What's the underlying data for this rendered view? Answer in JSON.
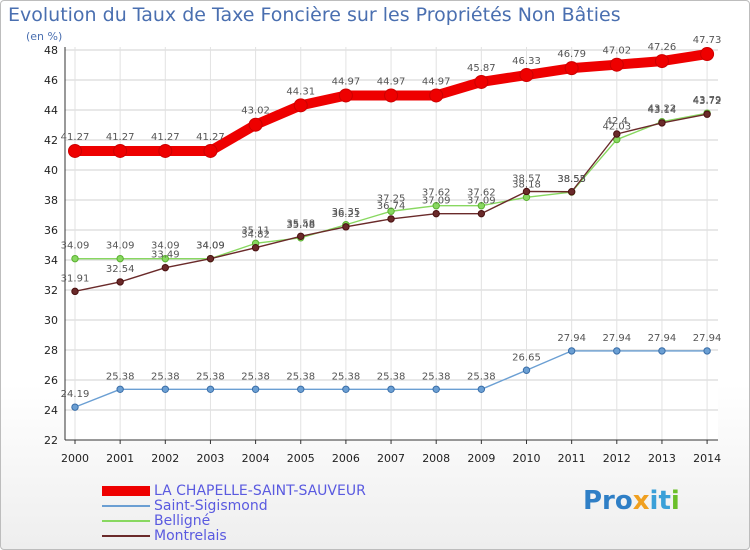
{
  "header": {
    "title": "Evolution du Taux de Taxe Foncière sur les Propriétés Non Bâties",
    "subtitle": "(en %)"
  },
  "brand": {
    "name": "Proxiti",
    "parts": [
      "Pro",
      "x",
      "it",
      "i"
    ]
  },
  "chart_data": {
    "type": "line",
    "title": "Evolution du Taux de Taxe Foncière sur les Propriétés Non Bâties",
    "ylabel": "(en %)",
    "xlabel": "",
    "x": [
      "2000",
      "2001",
      "2002",
      "2003",
      "2004",
      "2005",
      "2006",
      "2007",
      "2008",
      "2009",
      "2010",
      "2011",
      "2012",
      "2013",
      "2014"
    ],
    "ylim": [
      22,
      48
    ],
    "yticks": [
      22,
      24,
      26,
      28,
      30,
      32,
      34,
      36,
      38,
      40,
      42,
      44,
      46,
      48
    ],
    "grid": true,
    "legend": "bottom-left",
    "series": [
      {
        "name": "LA CHAPELLE-SAINT-SAUVEUR",
        "color": "#ee0000",
        "values": [
          41.27,
          41.27,
          41.27,
          41.27,
          43.02,
          44.31,
          44.97,
          44.97,
          44.97,
          45.87,
          46.33,
          46.79,
          47.02,
          47.26,
          47.73
        ],
        "labels": [
          "41.27",
          "41.27",
          "41.27",
          "41.27",
          "43.02",
          "44.31",
          "44.97",
          "44.97",
          "44.97",
          "45.87",
          "46.33",
          "46.79",
          "47.02",
          "47.26",
          "47.73"
        ]
      },
      {
        "name": "Saint-Sigismond",
        "color": "#6b9fd3",
        "values": [
          24.19,
          25.38,
          25.38,
          25.38,
          25.38,
          25.38,
          25.38,
          25.38,
          25.38,
          25.38,
          26.65,
          27.94,
          27.94,
          27.94,
          27.94
        ],
        "labels": [
          "24.19",
          "25.38",
          "25.38",
          "25.38",
          "25.38",
          "25.38",
          "25.38",
          "25.38",
          "25.38",
          "25.38",
          "26.65",
          "27.94",
          "27.94",
          "27.94",
          "27.94"
        ]
      },
      {
        "name": "Belligné",
        "color": "#88d860",
        "values": [
          34.09,
          34.09,
          34.09,
          34.09,
          35.11,
          35.48,
          36.35,
          37.25,
          37.62,
          37.62,
          38.18,
          38.53,
          42.03,
          43.22,
          43.79
        ],
        "labels": [
          "34.09",
          "34.09",
          "34.09",
          "34.09",
          "35.11",
          "35.48",
          "36.35",
          "37.25",
          "37.62",
          "37.62",
          "38.18",
          "38.53",
          "42.03",
          "43.22",
          "43.79"
        ]
      },
      {
        "name": "Montrelais",
        "color": "#6a2a2a",
        "values": [
          31.91,
          32.54,
          33.49,
          34.09,
          34.82,
          35.58,
          36.21,
          36.74,
          37.09,
          37.09,
          38.57,
          38.55,
          42.4,
          43.14,
          43.72
        ],
        "labels": [
          "31.91",
          "32.54",
          "33.49",
          "34.09",
          "34.82",
          "35.58",
          "36.21",
          "36.74",
          "37.09",
          "37.09",
          "38.57",
          "38.55",
          "42.4",
          "43.14",
          "43.72"
        ]
      }
    ]
  }
}
